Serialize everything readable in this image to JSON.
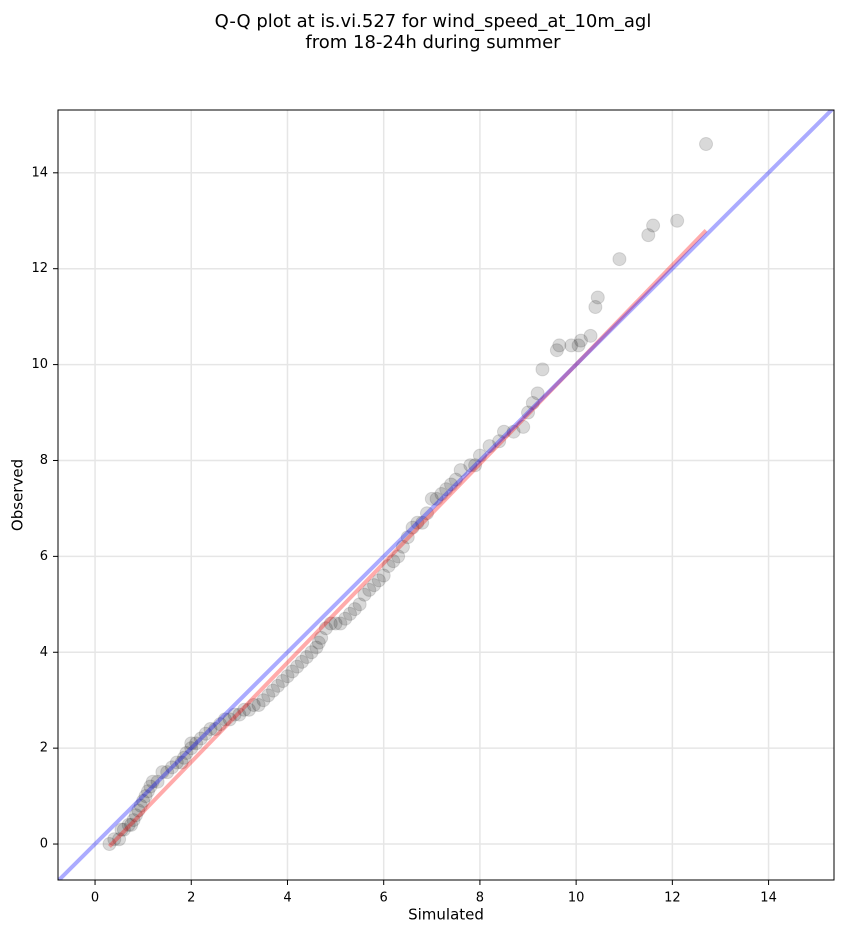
{
  "chart_data": {
    "type": "scatter",
    "title": [
      "Q-Q plot at is.vi.527 for wind_speed_at_10m_agl",
      "from 18-24h during summer"
    ],
    "x_label": "Simulated",
    "y_label": "Observed",
    "xlim": [
      -0.77,
      15.36
    ],
    "ylim": [
      -0.75,
      15.31
    ],
    "xticks": [
      0,
      2,
      4,
      6,
      8,
      10,
      12,
      14
    ],
    "yticks": [
      0,
      2,
      4,
      6,
      8,
      10,
      12,
      14
    ],
    "grid": true,
    "color": "#000000",
    "x": [
      0.3,
      0.4,
      0.5,
      0.55,
      0.6,
      0.7,
      0.75,
      0.8,
      0.85,
      0.9,
      0.95,
      1.0,
      1.05,
      1.1,
      1.15,
      1.2,
      1.3,
      1.4,
      1.5,
      1.6,
      1.7,
      1.8,
      1.85,
      1.9,
      2.0,
      2.0,
      2.1,
      2.2,
      2.3,
      2.4,
      2.5,
      2.6,
      2.7,
      2.8,
      2.9,
      3.0,
      3.1,
      3.2,
      3.3,
      3.4,
      3.5,
      3.6,
      3.7,
      3.8,
      3.9,
      4.0,
      4.1,
      4.2,
      4.3,
      4.4,
      4.5,
      4.6,
      4.65,
      4.7,
      4.8,
      4.9,
      5.0,
      5.1,
      5.2,
      5.3,
      5.4,
      5.5,
      5.6,
      5.7,
      5.8,
      5.9,
      6.0,
      6.1,
      6.2,
      6.3,
      6.4,
      6.5,
      6.6,
      6.7,
      6.8,
      6.9,
      7.0,
      7.1,
      7.2,
      7.3,
      7.4,
      7.5,
      7.6,
      7.8,
      7.9,
      8.0,
      8.2,
      8.4,
      8.5,
      8.7,
      8.9,
      9.0,
      9.1,
      9.2,
      9.3,
      9.6,
      9.65,
      9.9,
      10.05,
      10.1,
      10.3,
      10.4,
      10.45,
      10.9,
      11.5,
      11.6,
      12.1,
      12.7
    ],
    "y": [
      0.0,
      0.1,
      0.1,
      0.3,
      0.3,
      0.4,
      0.4,
      0.5,
      0.6,
      0.7,
      0.8,
      0.9,
      1.0,
      1.1,
      1.2,
      1.3,
      1.3,
      1.5,
      1.5,
      1.6,
      1.7,
      1.7,
      1.8,
      1.9,
      2.0,
      2.1,
      2.1,
      2.2,
      2.3,
      2.4,
      2.4,
      2.5,
      2.6,
      2.6,
      2.7,
      2.7,
      2.8,
      2.8,
      2.9,
      2.9,
      3.0,
      3.1,
      3.2,
      3.3,
      3.4,
      3.5,
      3.6,
      3.7,
      3.8,
      3.9,
      4.0,
      4.1,
      4.2,
      4.3,
      4.5,
      4.6,
      4.6,
      4.6,
      4.7,
      4.8,
      4.9,
      5.0,
      5.2,
      5.3,
      5.4,
      5.5,
      5.6,
      5.8,
      5.9,
      6.0,
      6.2,
      6.4,
      6.6,
      6.7,
      6.7,
      6.9,
      7.2,
      7.2,
      7.3,
      7.4,
      7.5,
      7.6,
      7.8,
      7.9,
      7.9,
      8.1,
      8.3,
      8.4,
      8.6,
      8.6,
      8.7,
      9.0,
      9.2,
      9.4,
      9.9,
      10.3,
      10.4,
      10.4,
      10.4,
      10.5,
      10.6,
      11.2,
      11.4,
      12.2,
      12.7,
      12.9,
      13.0,
      14.6
    ],
    "lines": [
      {
        "color": "#ff0000",
        "x": [
          0.3,
          12.7
        ],
        "y": [
          -0.05,
          12.8
        ]
      },
      {
        "color": "#0000ff",
        "x": [
          -0.77,
          15.36
        ],
        "y": [
          -0.77,
          15.36
        ]
      }
    ]
  }
}
